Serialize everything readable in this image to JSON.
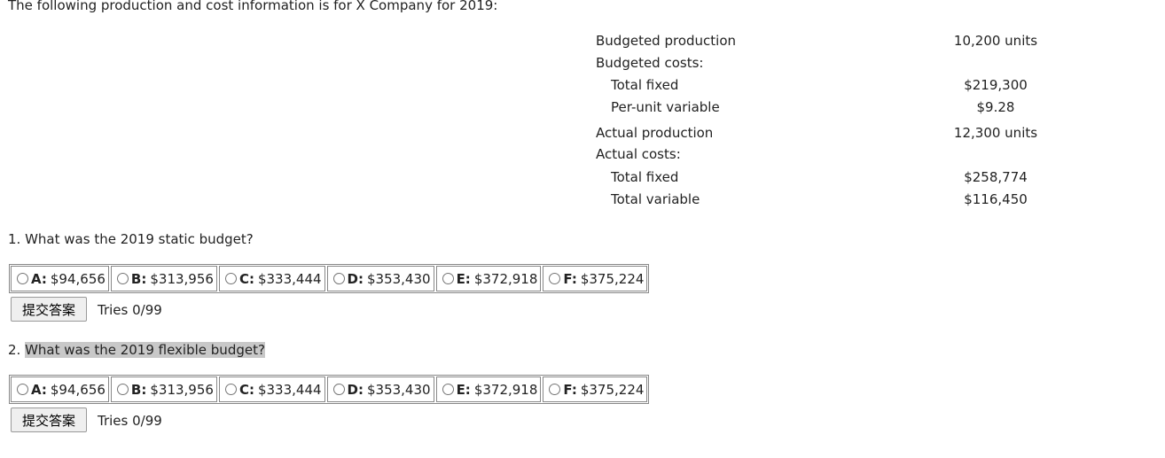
{
  "intro": "The following production and cost information is for X Company for 2019:",
  "table": {
    "rows": [
      {
        "label": "Budgeted production",
        "value": "10,200 units"
      },
      {
        "label": "Budgeted costs:"
      },
      {
        "label": "Total fixed",
        "value": "$219,300"
      },
      {
        "label": "Per-unit variable",
        "value": "$9.28"
      },
      {
        "label": "Actual production",
        "value": "12,300 units"
      },
      {
        "label": "Actual costs:"
      },
      {
        "label": "Total fixed",
        "value": "$258,774"
      },
      {
        "label": "Total variable",
        "value": "$116,450"
      }
    ]
  },
  "questions": [
    {
      "number": "1.",
      "text": "What was the 2019 static budget?",
      "options": [
        {
          "letter": "A:",
          "text": "$94,656"
        },
        {
          "letter": "B:",
          "text": "$313,956"
        },
        {
          "letter": "C:",
          "text": "$333,444"
        },
        {
          "letter": "D:",
          "text": "$353,430"
        },
        {
          "letter": "E:",
          "text": "$372,918"
        },
        {
          "letter": "F:",
          "text": "$375,224"
        }
      ],
      "button": "提交答案",
      "tries": "Tries 0/99"
    },
    {
      "number": "2.",
      "text": "What was the 2019 flexible budget?",
      "options": [
        {
          "letter": "A:",
          "text": "$94,656"
        },
        {
          "letter": "B:",
          "text": "$313,956"
        },
        {
          "letter": "C:",
          "text": "$333,444"
        },
        {
          "letter": "D:",
          "text": "$353,430"
        },
        {
          "letter": "E:",
          "text": "$372,918"
        },
        {
          "letter": "F:",
          "text": "$375,224"
        }
      ],
      "button": "提交答案",
      "tries": "Tries 0/99"
    }
  ]
}
